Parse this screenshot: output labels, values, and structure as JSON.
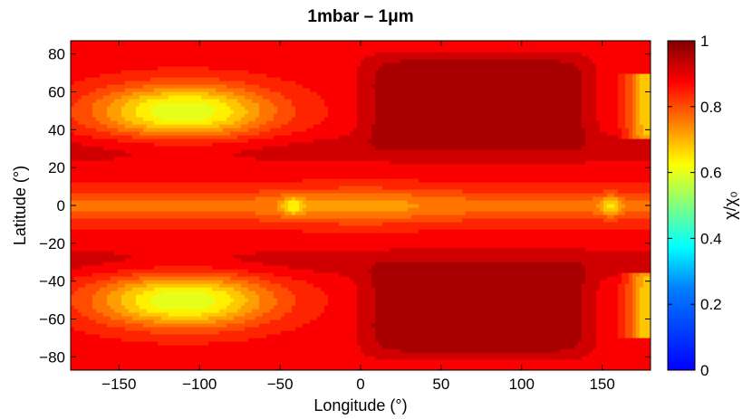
{
  "chart_data": {
    "type": "heatmap",
    "title": "1mbar – 1μm",
    "xlabel": "Longitude (°)",
    "ylabel": "Latitude (°)",
    "xlim": [
      -180,
      180
    ],
    "ylim": [
      -87,
      87
    ],
    "xticks": [
      "−150",
      "−100",
      "−50",
      "0",
      "50",
      "100",
      "150"
    ],
    "xtick_values": [
      -150,
      -100,
      -50,
      0,
      50,
      100,
      150
    ],
    "yticks": [
      "−80",
      "−60",
      "−40",
      "−20",
      "0",
      "20",
      "40",
      "60",
      "80"
    ],
    "ytick_values": [
      -80,
      -60,
      -40,
      -20,
      0,
      20,
      40,
      60,
      80
    ],
    "colorbar": {
      "label": "χ/χ₀",
      "range": [
        0,
        1
      ],
      "ticks": [
        "0",
        "0.2",
        "0.4",
        "0.6",
        "0.8",
        "1"
      ],
      "tick_values": [
        0,
        0.2,
        0.4,
        0.6,
        0.8,
        1
      ],
      "colormap": "jet"
    },
    "field_description": {
      "nightside_high_latitude_min": {
        "lon": -110,
        "lat_abs": 50,
        "value": 0.58
      },
      "dayside_high_latitude_max": {
        "lon": 80,
        "lat_abs": 55,
        "value": 0.98
      },
      "equatorial_band_value": 0.77,
      "midlatitude_band_value": 0.88,
      "equatorial_spots": [
        {
          "lon": -42,
          "lat": 0,
          "value": 0.62
        },
        {
          "lon": 155,
          "lat": 0,
          "value": 0.66
        }
      ]
    }
  }
}
